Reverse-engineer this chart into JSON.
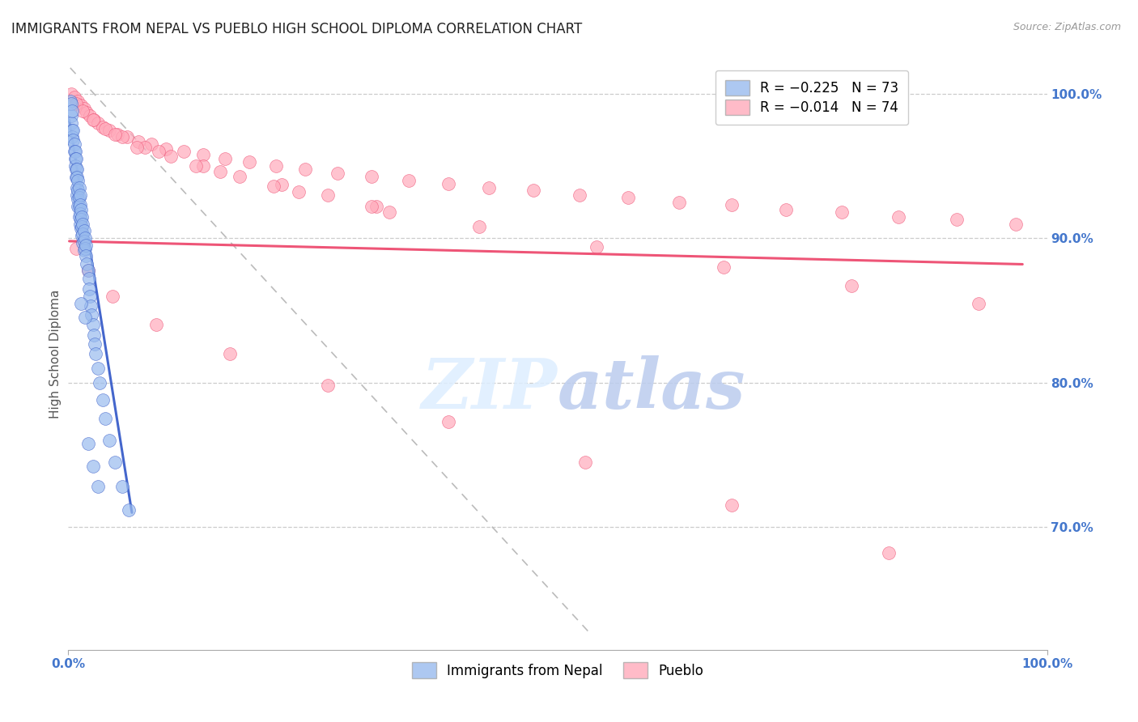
{
  "title": "IMMIGRANTS FROM NEPAL VS PUEBLO HIGH SCHOOL DIPLOMA CORRELATION CHART",
  "source": "Source: ZipAtlas.com",
  "ylabel": "High School Diploma",
  "y_tick_labels": [
    "70.0%",
    "80.0%",
    "90.0%",
    "100.0%"
  ],
  "y_tick_positions": [
    0.7,
    0.8,
    0.9,
    1.0
  ],
  "xlim": [
    0.0,
    1.0
  ],
  "ylim": [
    0.615,
    1.025
  ],
  "color_blue": "#99BBEE",
  "color_pink": "#FFAABB",
  "color_blue_line": "#4466CC",
  "color_pink_line": "#EE5577",
  "tick_color": "#4477CC",
  "nepal_x": [
    0.002,
    0.003,
    0.003,
    0.004,
    0.004,
    0.005,
    0.005,
    0.006,
    0.006,
    0.007,
    0.007,
    0.007,
    0.008,
    0.008,
    0.008,
    0.009,
    0.009,
    0.009,
    0.009,
    0.01,
    0.01,
    0.01,
    0.01,
    0.011,
    0.011,
    0.011,
    0.011,
    0.012,
    0.012,
    0.012,
    0.012,
    0.013,
    0.013,
    0.013,
    0.014,
    0.014,
    0.014,
    0.015,
    0.015,
    0.015,
    0.016,
    0.016,
    0.016,
    0.017,
    0.017,
    0.018,
    0.018,
    0.019,
    0.02,
    0.021,
    0.021,
    0.022,
    0.023,
    0.024,
    0.025,
    0.026,
    0.027,
    0.028,
    0.03,
    0.032,
    0.035,
    0.038,
    0.042,
    0.048,
    0.055,
    0.062,
    0.003,
    0.004,
    0.013,
    0.017,
    0.02,
    0.025,
    0.03
  ],
  "nepal_y": [
    0.995,
    0.985,
    0.98,
    0.975,
    0.97,
    0.975,
    0.968,
    0.965,
    0.96,
    0.96,
    0.955,
    0.95,
    0.955,
    0.948,
    0.942,
    0.948,
    0.942,
    0.935,
    0.93,
    0.94,
    0.933,
    0.927,
    0.922,
    0.935,
    0.928,
    0.922,
    0.915,
    0.93,
    0.923,
    0.917,
    0.91,
    0.92,
    0.913,
    0.907,
    0.915,
    0.908,
    0.902,
    0.91,
    0.903,
    0.897,
    0.905,
    0.898,
    0.892,
    0.9,
    0.893,
    0.895,
    0.888,
    0.882,
    0.878,
    0.872,
    0.865,
    0.86,
    0.853,
    0.847,
    0.84,
    0.833,
    0.827,
    0.82,
    0.81,
    0.8,
    0.788,
    0.775,
    0.76,
    0.745,
    0.728,
    0.712,
    0.993,
    0.988,
    0.855,
    0.845,
    0.758,
    0.742,
    0.728
  ],
  "pueblo_x": [
    0.003,
    0.006,
    0.01,
    0.013,
    0.016,
    0.019,
    0.022,
    0.026,
    0.03,
    0.035,
    0.042,
    0.05,
    0.06,
    0.072,
    0.085,
    0.1,
    0.118,
    0.138,
    0.16,
    0.185,
    0.212,
    0.242,
    0.275,
    0.31,
    0.348,
    0.388,
    0.43,
    0.475,
    0.522,
    0.572,
    0.624,
    0.678,
    0.733,
    0.79,
    0.848,
    0.908,
    0.968,
    0.008,
    0.015,
    0.025,
    0.038,
    0.055,
    0.078,
    0.105,
    0.138,
    0.175,
    0.218,
    0.265,
    0.315,
    0.07,
    0.13,
    0.21,
    0.31,
    0.42,
    0.54,
    0.67,
    0.8,
    0.93,
    0.048,
    0.092,
    0.155,
    0.235,
    0.328,
    0.008,
    0.02,
    0.045,
    0.09,
    0.165,
    0.265,
    0.388,
    0.528,
    0.678,
    0.838
  ],
  "pueblo_y": [
    1.0,
    0.998,
    0.995,
    0.992,
    0.99,
    0.987,
    0.985,
    0.982,
    0.98,
    0.977,
    0.975,
    0.972,
    0.97,
    0.967,
    0.965,
    0.962,
    0.96,
    0.958,
    0.955,
    0.953,
    0.95,
    0.948,
    0.945,
    0.943,
    0.94,
    0.938,
    0.935,
    0.933,
    0.93,
    0.928,
    0.925,
    0.923,
    0.92,
    0.918,
    0.915,
    0.913,
    0.91,
    0.993,
    0.988,
    0.982,
    0.976,
    0.97,
    0.963,
    0.957,
    0.95,
    0.943,
    0.937,
    0.93,
    0.922,
    0.963,
    0.95,
    0.936,
    0.922,
    0.908,
    0.894,
    0.88,
    0.867,
    0.855,
    0.972,
    0.96,
    0.946,
    0.932,
    0.918,
    0.893,
    0.878,
    0.86,
    0.84,
    0.82,
    0.798,
    0.773,
    0.745,
    0.715,
    0.682
  ],
  "nepal_line_x": [
    0.001,
    0.065
  ],
  "nepal_line_y": [
    0.982,
    0.71
  ],
  "pueblo_line_x": [
    0.001,
    0.975
  ],
  "pueblo_line_y": [
    0.898,
    0.882
  ],
  "dashed_line_x": [
    0.002,
    0.535
  ],
  "dashed_line_y": [
    1.018,
    0.625
  ]
}
